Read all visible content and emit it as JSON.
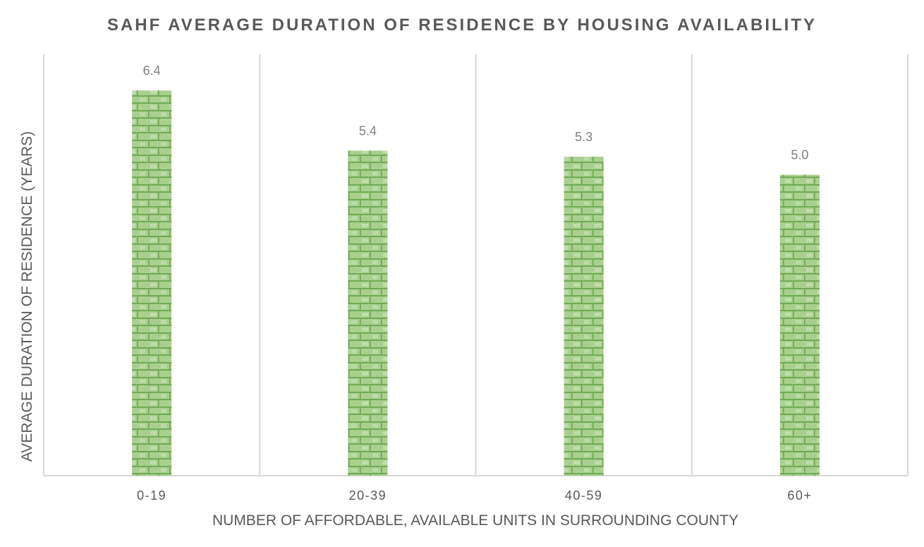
{
  "chart_data": {
    "type": "bar",
    "title": "SAHF AVERAGE DURATION OF RESIDENCE BY HOUSING AVAILABILITY",
    "xlabel": "NUMBER OF AFFORDABLE, AVAILABLE UNITS IN SURROUNDING COUNTY",
    "ylabel": "AVERAGE DURATION OF RESIDENCE (YEARS)",
    "categories": [
      "0-19",
      "20-39",
      "40-59",
      "60+"
    ],
    "values": [
      6.4,
      5.4,
      5.3,
      5.0
    ],
    "data_labels": [
      "6.4",
      "5.4",
      "5.3",
      "5.0"
    ],
    "ylim": [
      0,
      7
    ],
    "grid": "vertical category separators",
    "legend": "none",
    "colors": {
      "bar": "#70ad47",
      "bar_light": "#a9d08e",
      "mortar": "#e2efda",
      "grid": "#d9d9d9",
      "text": "#595959",
      "data_label": "#7f7f7f"
    }
  }
}
